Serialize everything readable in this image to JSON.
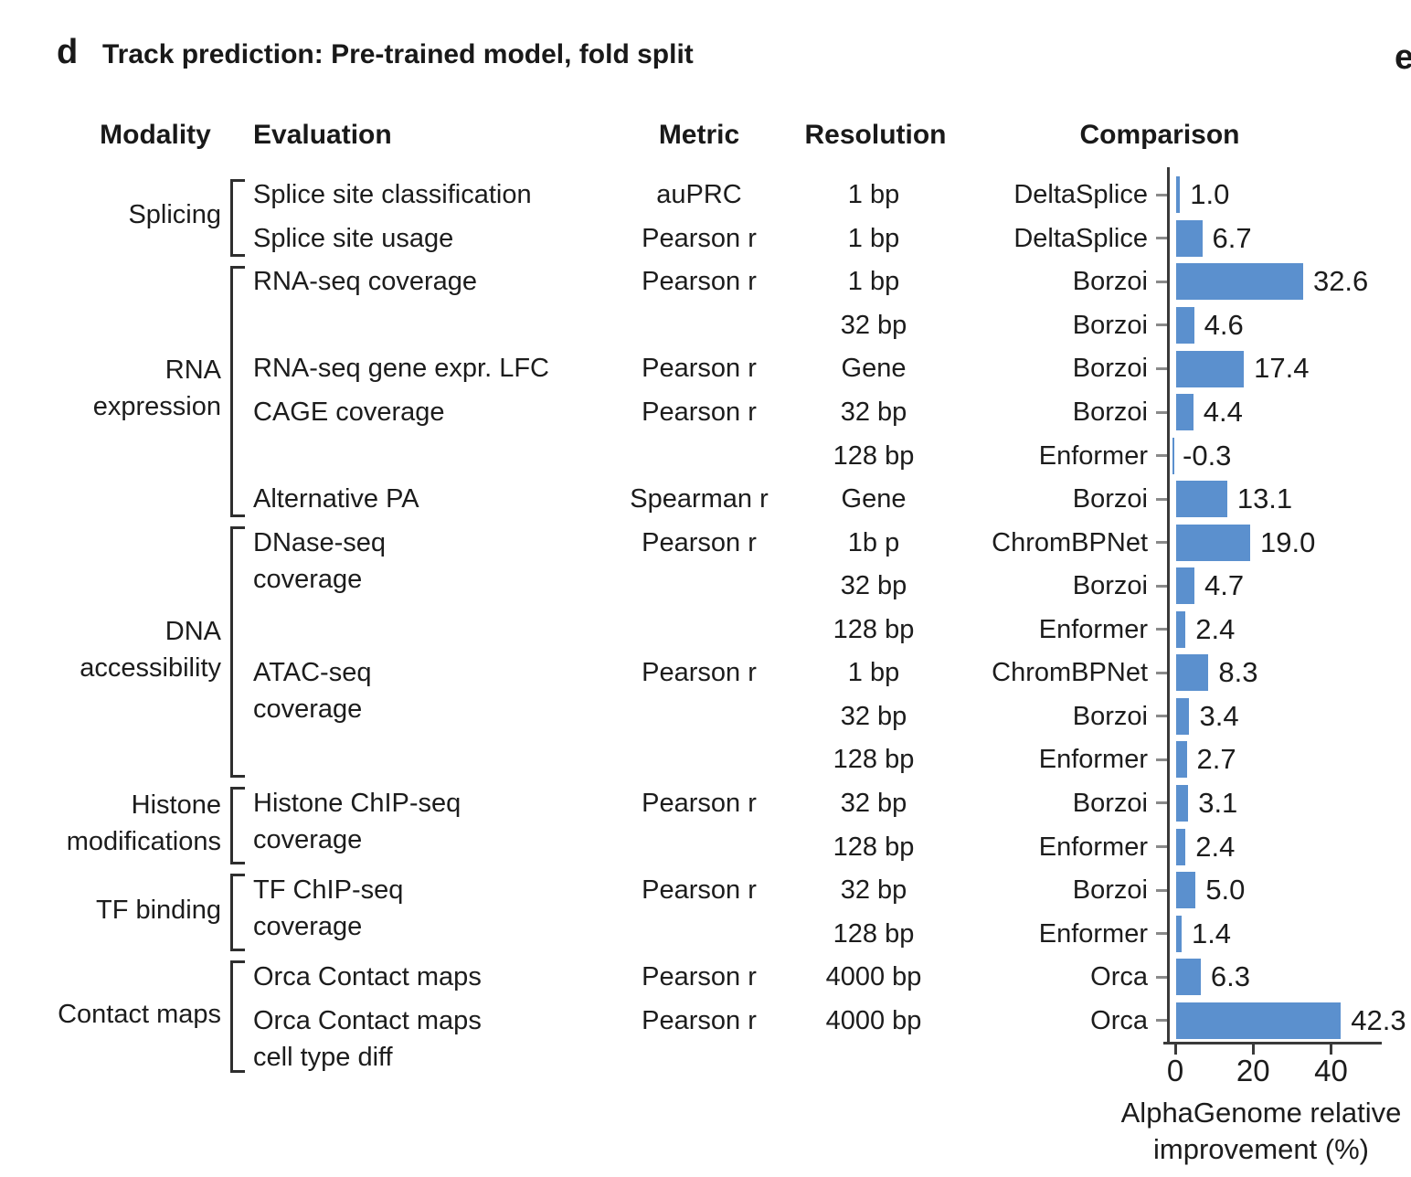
{
  "panel": {
    "letter": "d",
    "title": "Track prediction: Pre-trained model, fold split",
    "next_panel_letter": "e"
  },
  "headers": {
    "modality": "Modality",
    "evaluation": "Evaluation",
    "metric": "Metric",
    "resolution": "Resolution",
    "comparison": "Comparison"
  },
  "colors": {
    "bar": "#5b90ce",
    "text": "#1c1c1c",
    "axis": "#3a3a3a",
    "category_tick": "#8a8a8a"
  },
  "chart_data": {
    "type": "bar",
    "orientation": "horizontal",
    "title": "Track prediction: Pre-trained model, fold split",
    "xlabel": "AlphaGenome relative improvement (%)",
    "xlabel_lines": [
      "AlphaGenome relative",
      "improvement (%)"
    ],
    "x_ticks": [
      0,
      20,
      40
    ],
    "xlim": [
      -3,
      53
    ],
    "grid": false,
    "legend": "none",
    "groups": [
      {
        "modality_lines": [
          "Splicing"
        ],
        "start_row": 0,
        "end_row": 1
      },
      {
        "modality_lines": [
          "RNA",
          "expression"
        ],
        "start_row": 2,
        "end_row": 7
      },
      {
        "modality_lines": [
          "DNA",
          "accessibility"
        ],
        "start_row": 8,
        "end_row": 13
      },
      {
        "modality_lines": [
          "Histone",
          "modifications"
        ],
        "start_row": 14,
        "end_row": 15
      },
      {
        "modality_lines": [
          "TF binding"
        ],
        "start_row": 16,
        "end_row": 17
      },
      {
        "modality_lines": [
          "Contact maps"
        ],
        "start_row": 18,
        "end_row": 19
      }
    ],
    "evaluations": [
      {
        "row": 0,
        "lines": [
          "Splice site classification"
        ],
        "metric": "auPRC"
      },
      {
        "row": 1,
        "lines": [
          "Splice site usage"
        ],
        "metric": "Pearson r"
      },
      {
        "row": 2,
        "lines": [
          "RNA-seq coverage"
        ],
        "metric": "Pearson r"
      },
      {
        "row": 4,
        "lines": [
          "RNA-seq gene expr. LFC"
        ],
        "metric": "Pearson r"
      },
      {
        "row": 5,
        "lines": [
          "CAGE coverage"
        ],
        "metric": "Pearson r"
      },
      {
        "row": 7,
        "lines": [
          "Alternative PA"
        ],
        "metric": "Spearman r"
      },
      {
        "row": 8,
        "lines": [
          "DNase-seq",
          "coverage"
        ],
        "metric": "Pearson r"
      },
      {
        "row": 11,
        "lines": [
          "ATAC-seq",
          "coverage"
        ],
        "metric": "Pearson r"
      },
      {
        "row": 14,
        "lines": [
          "Histone ChIP-seq",
          "coverage"
        ],
        "metric": "Pearson r"
      },
      {
        "row": 16,
        "lines": [
          "TF ChIP-seq",
          "coverage"
        ],
        "metric": "Pearson r"
      },
      {
        "row": 18,
        "lines": [
          "Orca Contact maps"
        ],
        "metric": "Pearson r"
      },
      {
        "row": 19,
        "lines": [
          "Orca Contact maps",
          "cell type diff"
        ],
        "metric": "Pearson r"
      }
    ],
    "rows": [
      {
        "resolution": "1 bp",
        "comparison": "DeltaSplice",
        "value": 1.0,
        "label": "1.0"
      },
      {
        "resolution": "1 bp",
        "comparison": "DeltaSplice",
        "value": 6.7,
        "label": "6.7"
      },
      {
        "resolution": "1 bp",
        "comparison": "Borzoi",
        "value": 32.6,
        "label": "32.6"
      },
      {
        "resolution": "32 bp",
        "comparison": "Borzoi",
        "value": 4.6,
        "label": "4.6"
      },
      {
        "resolution": "Gene",
        "comparison": "Borzoi",
        "value": 17.4,
        "label": "17.4"
      },
      {
        "resolution": "32 bp",
        "comparison": "Borzoi",
        "value": 4.4,
        "label": "4.4"
      },
      {
        "resolution": "128 bp",
        "comparison": "Enformer",
        "value": -0.3,
        "label": "-0.3"
      },
      {
        "resolution": "Gene",
        "comparison": "Borzoi",
        "value": 13.1,
        "label": "13.1"
      },
      {
        "resolution": "1b p",
        "comparison": "ChromBPNet",
        "value": 19.0,
        "label": "19.0"
      },
      {
        "resolution": "32 bp",
        "comparison": "Borzoi",
        "value": 4.7,
        "label": "4.7"
      },
      {
        "resolution": "128 bp",
        "comparison": "Enformer",
        "value": 2.4,
        "label": "2.4"
      },
      {
        "resolution": "1 bp",
        "comparison": "ChromBPNet",
        "value": 8.3,
        "label": "8.3"
      },
      {
        "resolution": "32 bp",
        "comparison": "Borzoi",
        "value": 3.4,
        "label": "3.4"
      },
      {
        "resolution": "128 bp",
        "comparison": "Enformer",
        "value": 2.7,
        "label": "2.7"
      },
      {
        "resolution": "32 bp",
        "comparison": "Borzoi",
        "value": 3.1,
        "label": "3.1"
      },
      {
        "resolution": "128 bp",
        "comparison": "Enformer",
        "value": 2.4,
        "label": "2.4"
      },
      {
        "resolution": "32 bp",
        "comparison": "Borzoi",
        "value": 5.0,
        "label": "5.0"
      },
      {
        "resolution": "128 bp",
        "comparison": "Enformer",
        "value": 1.4,
        "label": "1.4"
      },
      {
        "resolution": "4000 bp",
        "comparison": "Orca",
        "value": 6.3,
        "label": "6.3"
      },
      {
        "resolution": "4000 bp",
        "comparison": "Orca",
        "value": 42.3,
        "label": "42.3"
      }
    ]
  }
}
